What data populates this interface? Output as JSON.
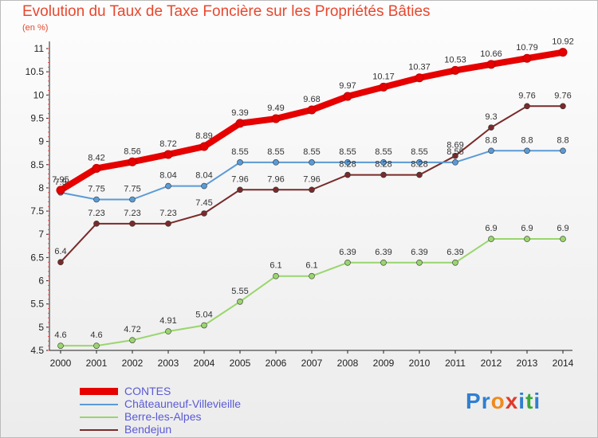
{
  "title": "Evolution du Taux de Taxe Foncière sur les Propriétés Bâties",
  "unit_label": "(en %)",
  "logo": {
    "text": "Proxiti",
    "letters": [
      "P",
      "r",
      "o",
      "x",
      "i",
      "t",
      "i"
    ],
    "colors": [
      "#2f7fd0",
      "#2f7fd0",
      "#f08a1c",
      "#e03a2a",
      "#2f7fd0",
      "#3aa83a",
      "#2f7fd0"
    ]
  },
  "chart_data": {
    "type": "line",
    "x": [
      2000,
      2001,
      2002,
      2003,
      2004,
      2005,
      2006,
      2007,
      2008,
      2009,
      2010,
      2011,
      2012,
      2013,
      2014
    ],
    "ylim": [
      4.5,
      11
    ],
    "yticks": [
      4.5,
      5,
      5.5,
      6,
      6.5,
      7,
      7.5,
      8,
      8.5,
      9,
      9.5,
      10,
      10.5,
      11
    ],
    "ytick_labels": [
      "4.5",
      "5",
      "5.5",
      "6",
      "6.5",
      "7",
      "7.5",
      "8",
      "8.5",
      "9",
      "9.5",
      "10",
      "10.5",
      "11"
    ],
    "grid": false,
    "legend_position": "bottom-left",
    "series": [
      {
        "name": "CONTES",
        "color": "#e60000",
        "values": [
          7.95,
          8.42,
          8.56,
          8.72,
          8.89,
          9.39,
          9.49,
          9.68,
          9.97,
          10.17,
          10.37,
          10.53,
          10.66,
          10.79,
          10.92
        ],
        "labels": [
          "7.95",
          "8.42",
          "8.56",
          "8.72",
          "8.89",
          "9.39",
          "9.49",
          "9.68",
          "9.97",
          "10.17",
          "10.37",
          "10.53",
          "10.66",
          "10.79",
          "10.92"
        ]
      },
      {
        "name": "Châteauneuf-Villevieille",
        "color": "#5b9bd5",
        "values": [
          7.9,
          7.75,
          7.75,
          8.04,
          8.04,
          8.55,
          8.55,
          8.55,
          8.55,
          8.55,
          8.55,
          8.55,
          8.8,
          8.8,
          8.8
        ],
        "labels": [
          "7.9",
          "7.75",
          "7.75",
          "8.04",
          "8.04",
          "8.55",
          "8.55",
          "8.55",
          "8.55",
          "8.55",
          "8.55",
          "8.55",
          "8.8",
          "8.8",
          "8.8"
        ]
      },
      {
        "name": "Berre-les-Alpes",
        "color": "#9ad56e",
        "values": [
          4.6,
          4.6,
          4.72,
          4.91,
          5.04,
          5.55,
          6.1,
          6.1,
          6.39,
          6.39,
          6.39,
          6.39,
          6.9,
          6.9,
          6.9
        ],
        "labels": [
          "4.6",
          "4.6",
          "4.72",
          "4.91",
          "5.04",
          "5.55",
          "6.1",
          "6.1",
          "6.39",
          "6.39",
          "6.39",
          "6.39",
          "6.9",
          "6.9",
          "6.9"
        ]
      },
      {
        "name": "Bendejun",
        "color": "#7a2a2a",
        "values": [
          6.4,
          7.23,
          7.23,
          7.23,
          7.45,
          7.96,
          7.96,
          7.96,
          8.28,
          8.28,
          8.28,
          8.69,
          9.3,
          9.76,
          9.76
        ],
        "labels": [
          "6.4",
          "7.23",
          "7.23",
          "7.23",
          "7.45",
          "7.96",
          "7.96",
          "7.96",
          "8.28",
          "8.28",
          "8.28",
          "8.69",
          "9.3",
          "9.76",
          "9.76"
        ]
      }
    ]
  }
}
